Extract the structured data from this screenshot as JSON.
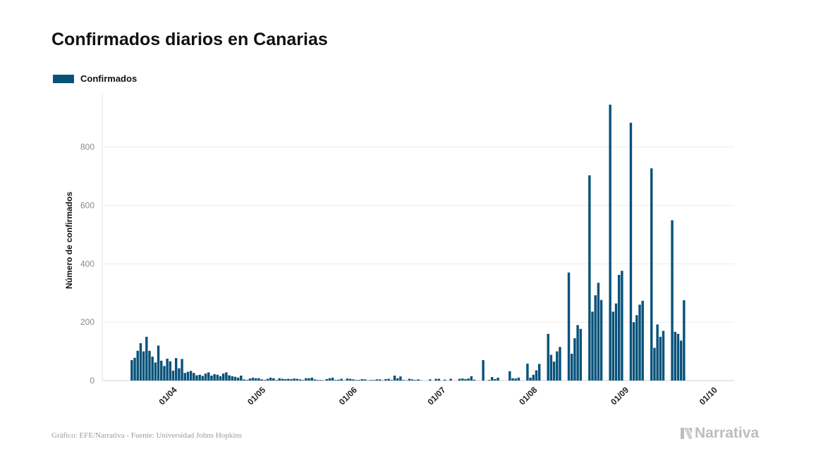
{
  "title": "Confirmados diarios en Canarias",
  "legend": {
    "label": "Confirmados",
    "color": "#08527a"
  },
  "footer": "Gráfico: EFE/Narrativa - Fuente: Universidad Johns Hopkins",
  "brand": {
    "name": "Narrativa",
    "icon": "narrativa-logo-icon"
  },
  "chart_data": {
    "type": "bar",
    "title": "Confirmados diarios en Canarias",
    "xlabel": "",
    "ylabel": "Número de confirmados",
    "series": [
      {
        "name": "Confirmados",
        "color": "#08527a"
      }
    ],
    "ylim": [
      0,
      980
    ],
    "yticks": [
      0,
      200,
      400,
      600,
      800
    ],
    "xlim": [
      "2020-03-08",
      "2020-10-08"
    ],
    "xticks": [
      {
        "date": "2020-04-01",
        "label": "01/04"
      },
      {
        "date": "2020-05-01",
        "label": "01/05"
      },
      {
        "date": "2020-06-01",
        "label": "01/06"
      },
      {
        "date": "2020-07-01",
        "label": "01/07"
      },
      {
        "date": "2020-08-01",
        "label": "01/08"
      },
      {
        "date": "2020-09-01",
        "label": "01/09"
      },
      {
        "date": "2020-10-01",
        "label": "01/10"
      }
    ],
    "grid": true,
    "legend_position": "top-left",
    "start_date": "2020-03-18",
    "values": [
      70,
      78,
      102,
      128,
      100,
      150,
      102,
      82,
      62,
      120,
      68,
      50,
      75,
      66,
      34,
      77,
      42,
      74,
      26,
      30,
      33,
      26,
      18,
      20,
      16,
      24,
      28,
      17,
      22,
      20,
      15,
      24,
      28,
      18,
      15,
      13,
      10,
      17,
      4,
      2,
      7,
      10,
      8,
      8,
      4,
      2,
      6,
      10,
      8,
      2,
      8,
      6,
      5,
      6,
      5,
      7,
      6,
      4,
      2,
      8,
      8,
      10,
      4,
      2,
      2,
      1,
      5,
      8,
      10,
      2,
      3,
      6,
      1,
      7,
      6,
      4,
      2,
      2,
      5,
      4,
      1,
      2,
      2,
      4,
      4,
      1,
      5,
      6,
      2,
      17,
      8,
      14,
      2,
      1,
      6,
      4,
      2,
      4,
      1,
      0,
      0,
      4,
      0,
      6,
      6,
      0,
      3,
      0,
      6,
      0,
      0,
      6,
      7,
      5,
      7,
      15,
      3,
      0,
      0,
      70,
      0,
      2,
      12,
      5,
      10,
      0,
      0,
      0,
      32,
      8,
      7,
      10,
      0,
      0,
      58,
      10,
      20,
      35,
      57,
      0,
      0,
      160,
      88,
      65,
      100,
      115,
      0,
      0,
      370,
      92,
      145,
      190,
      177,
      0,
      0,
      703,
      236,
      292,
      335,
      276,
      0,
      0,
      945,
      236,
      264,
      362,
      376,
      0,
      0,
      883,
      200,
      224,
      260,
      273,
      0,
      0,
      727,
      112,
      192,
      150,
      170,
      0,
      0,
      549,
      167,
      160,
      137,
      275
    ]
  }
}
